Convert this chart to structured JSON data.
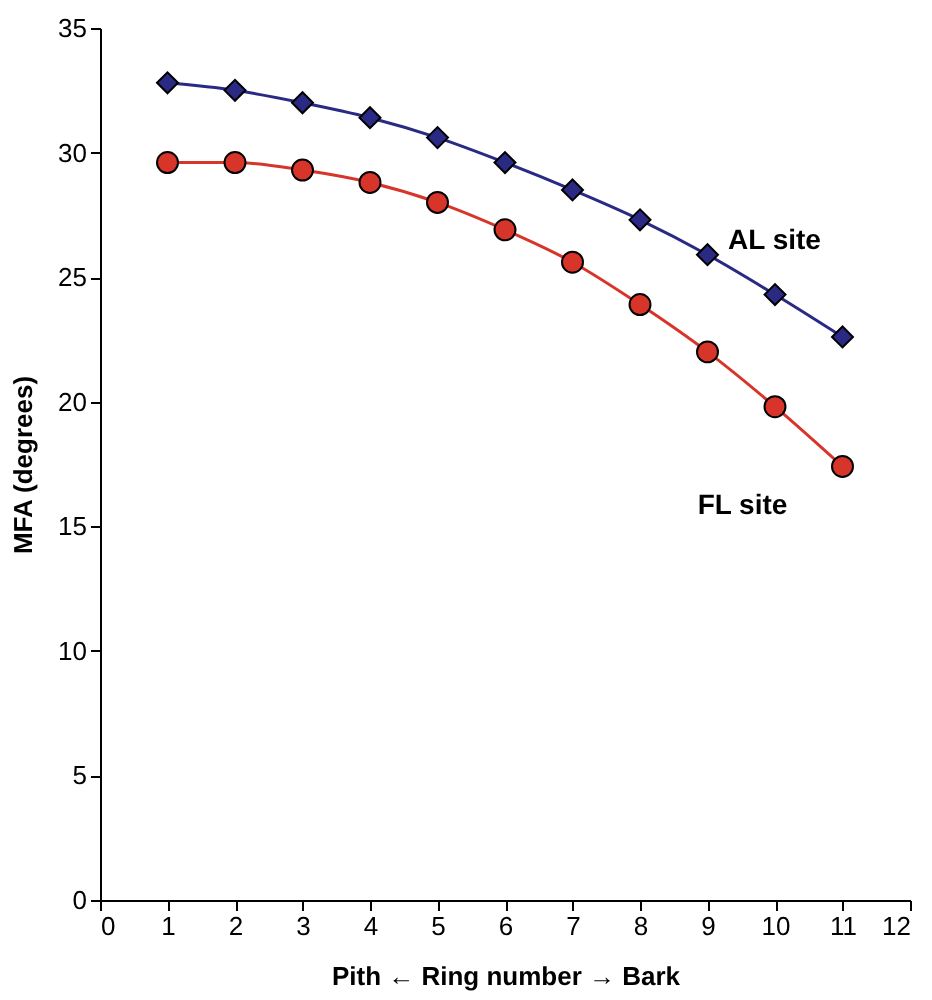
{
  "chart_data": {
    "type": "line",
    "xlabel": "Pith ← Ring number → Bark",
    "ylabel": "MFA (degrees)",
    "x": [
      1,
      2,
      3,
      4,
      5,
      6,
      7,
      8,
      9,
      10,
      11
    ],
    "series": [
      {
        "name": "AL site",
        "color": "#2a2a85",
        "marker": "diamond",
        "values": [
          32.8,
          32.5,
          32.0,
          31.4,
          30.6,
          29.6,
          28.5,
          27.3,
          25.9,
          24.3,
          22.6
        ]
      },
      {
        "name": "FL site",
        "color": "#d8352a",
        "marker": "circle",
        "values": [
          29.6,
          29.6,
          29.3,
          28.8,
          28.0,
          26.9,
          25.6,
          23.9,
          22.0,
          19.8,
          17.4
        ]
      }
    ],
    "xlim": [
      0,
      12
    ],
    "xticks": [
      0,
      1,
      2,
      3,
      4,
      5,
      6,
      7,
      8,
      9,
      10,
      11,
      12
    ],
    "ylim": [
      0,
      35
    ],
    "yticks": [
      0,
      5,
      10,
      15,
      20,
      25,
      30,
      35
    ],
    "grid": false,
    "legend": false,
    "line_style": "solid"
  }
}
